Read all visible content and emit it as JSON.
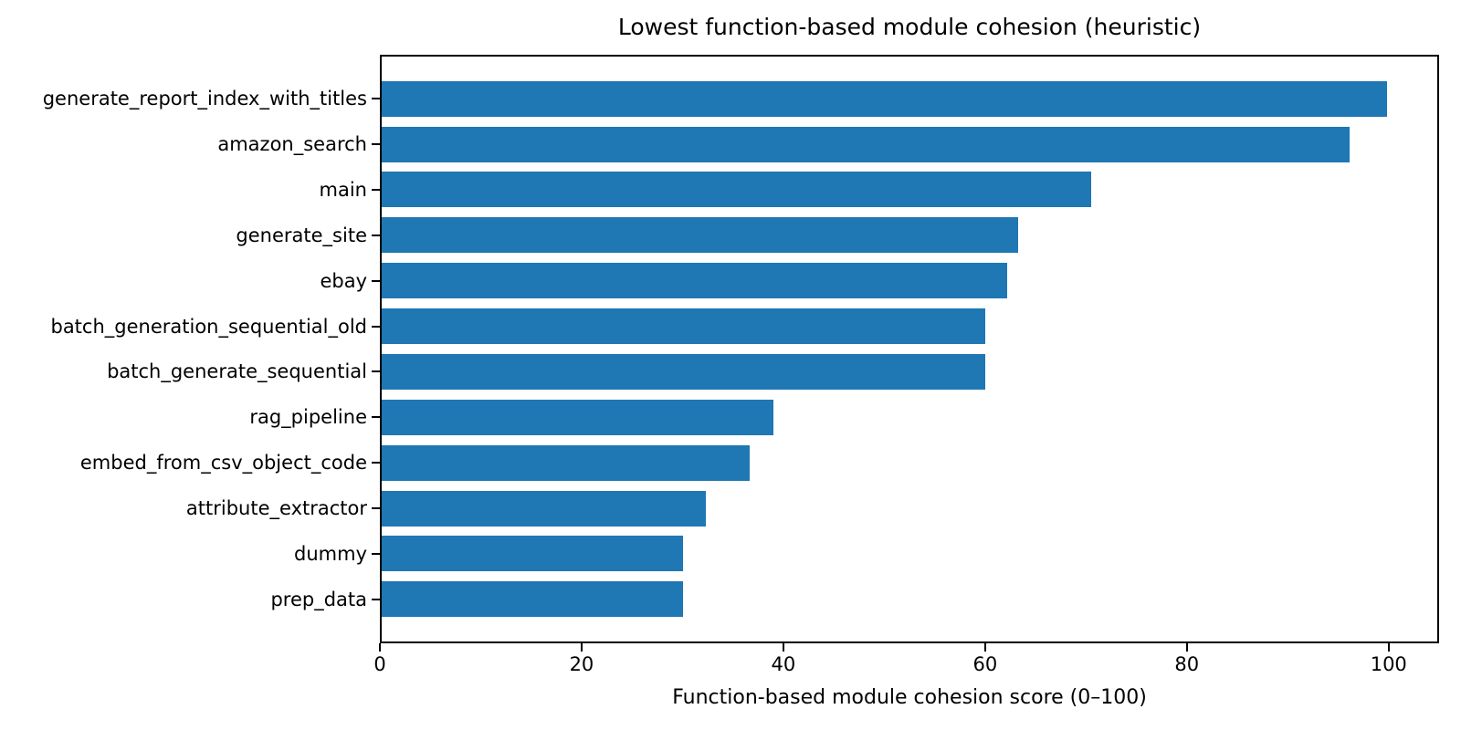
{
  "chart_data": {
    "type": "bar",
    "orientation": "horizontal",
    "title": "Lowest function-based module cohesion (heuristic)",
    "xlabel": "Function-based module cohesion score (0–100)",
    "ylabel": "",
    "categories": [
      "generate_report_index_with_titles",
      "amazon_search",
      "main",
      "generate_site",
      "ebay",
      "batch_generation_sequential_old",
      "batch_generate_sequential",
      "rag_pipeline",
      "embed_from_csv_object_code",
      "attribute_extractor",
      "dummy",
      "prep_data"
    ],
    "values": [
      100,
      96.3,
      70.6,
      63.3,
      62.2,
      60,
      60,
      39,
      36.6,
      32.2,
      30,
      30
    ],
    "xticks": [
      0,
      20,
      40,
      60,
      80,
      100
    ],
    "xlim": [
      0,
      105
    ],
    "grid": false,
    "legend": null,
    "bar_color": "#1f77b4",
    "spine_color": "#000000",
    "text_color": "#000000",
    "background": "#ffffff"
  }
}
